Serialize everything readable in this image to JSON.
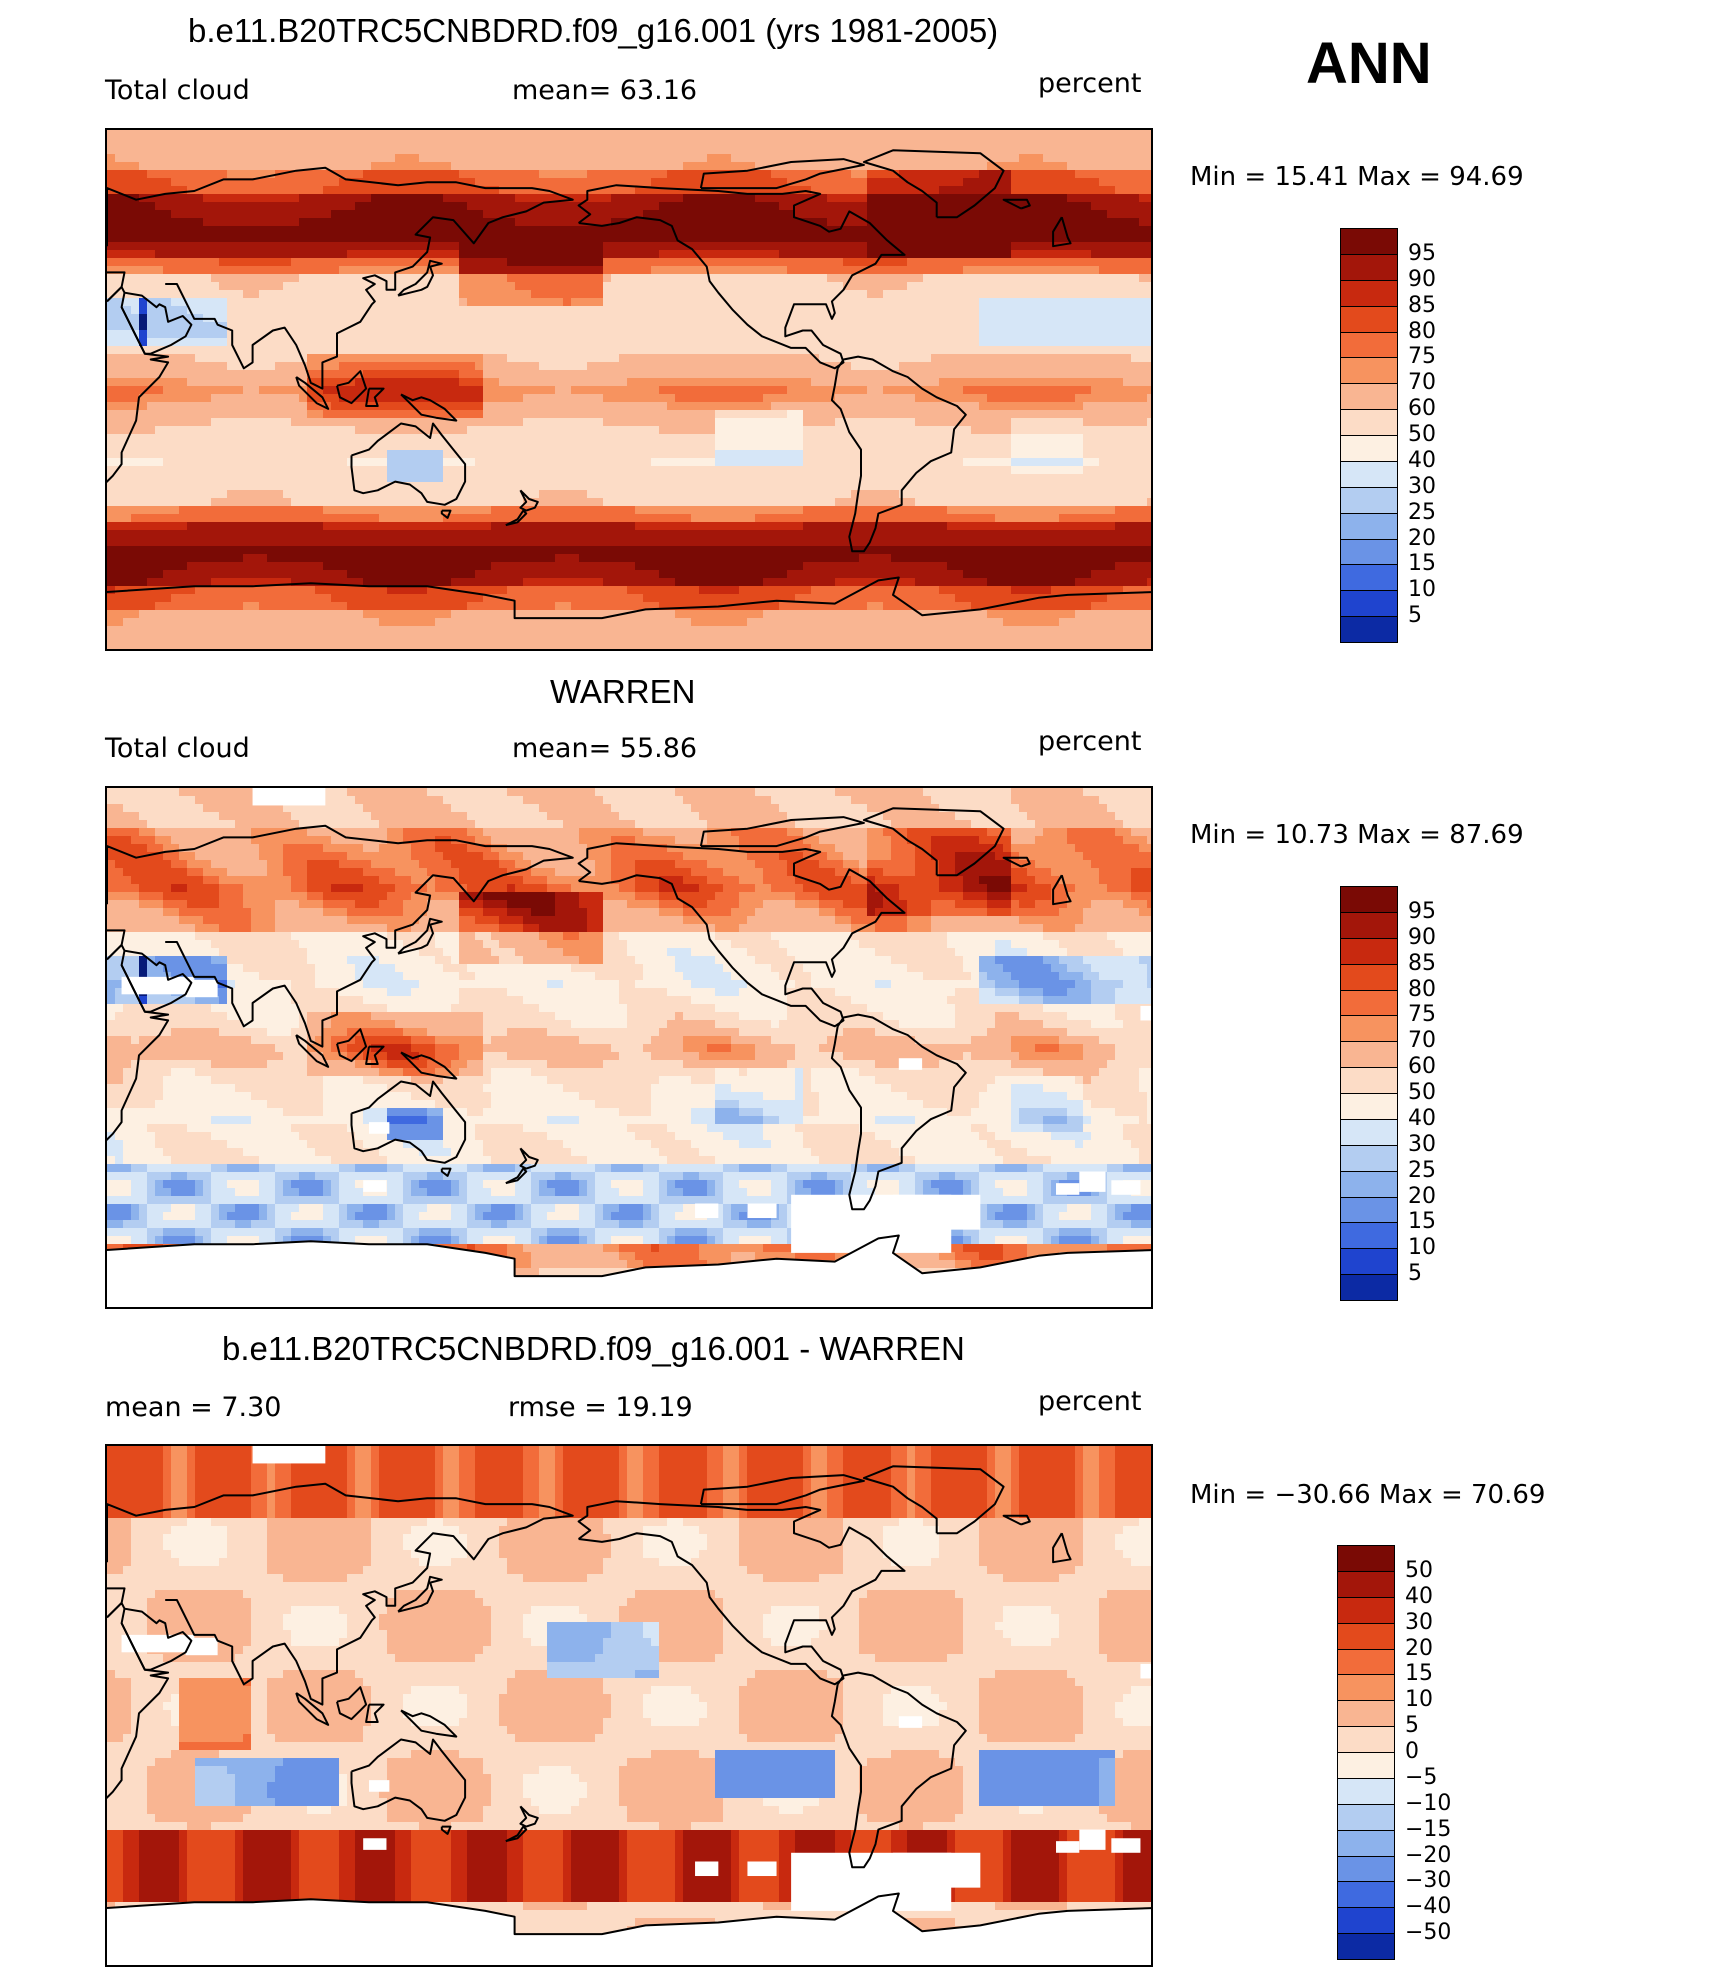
{
  "figure": {
    "season": "ANN"
  },
  "panels": [
    {
      "title": "b.e11.B20TRC5CNBDRD.f09_g16.001 (yrs 1981-2005)",
      "left_label": "Total cloud",
      "center_label": "mean=   63.16",
      "units": "percent",
      "minmax": "Min =   15.41  Max =   94.69",
      "scale": "abs",
      "colorbar_labels": [
        "95",
        "90",
        "85",
        "80",
        "75",
        "70",
        "60",
        "50",
        "40",
        "30",
        "25",
        "20",
        "15",
        "10",
        "5"
      ]
    },
    {
      "title": "WARREN",
      "left_label": "Total cloud",
      "center_label": "mean=   55.86",
      "units": "percent",
      "minmax": "Min =   10.73  Max =   87.69",
      "scale": "abs",
      "colorbar_labels": [
        "95",
        "90",
        "85",
        "80",
        "75",
        "70",
        "60",
        "50",
        "40",
        "30",
        "25",
        "20",
        "15",
        "10",
        "5"
      ]
    },
    {
      "title": "b.e11.B20TRC5CNBDRD.f09_g16.001 - WARREN",
      "left_label": "mean =     7.30",
      "center_label": "rmse =    19.19",
      "units": "percent",
      "minmax": "Min = −30.66  Max =   70.69",
      "scale": "diff",
      "colorbar_labels": [
        "50",
        "40",
        "30",
        "20",
        "15",
        "10",
        "5",
        "0",
        "−5",
        "−10",
        "−15",
        "−20",
        "−30",
        "−40",
        "−50"
      ]
    }
  ],
  "colors": {
    "abs_scale": [
      "#7a0a05",
      "#a3160a",
      "#c8290f",
      "#e34a1c",
      "#f26c3a",
      "#f7935f",
      "#f9b592",
      "#fcdcc6",
      "#fdf0e2",
      "#d6e6f7",
      "#b3cdf1",
      "#8db2ec",
      "#6a93e6",
      "#3f6ae0",
      "#1f44cf",
      "#0c2aa4",
      "#061a78"
    ],
    "diff_scale": [
      "#7a0a05",
      "#a3160a",
      "#c8290f",
      "#e34a1c",
      "#f26c3a",
      "#f7935f",
      "#f9b592",
      "#fcdcc6",
      "#fdf0e2",
      "#d6e6f7",
      "#b3cdf1",
      "#8db2ec",
      "#6a93e6",
      "#3f6ae0",
      "#1f44cf",
      "#0c2aa4",
      "#061a78"
    ],
    "missing": "#ffffff",
    "coastline": "#000000"
  }
}
